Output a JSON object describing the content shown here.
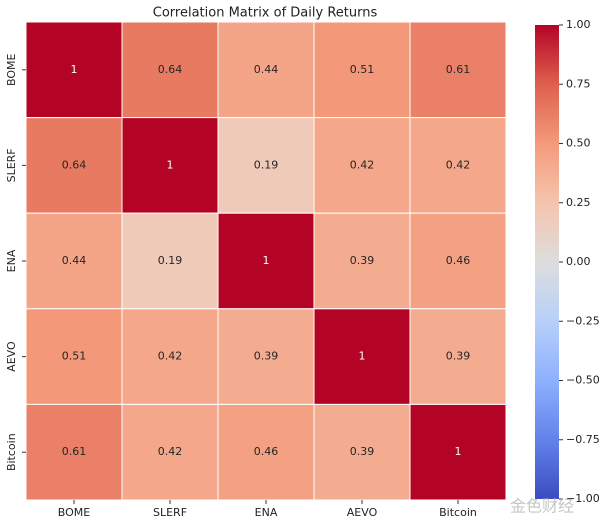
{
  "chart_data": {
    "type": "heatmap",
    "title": "Correlation Matrix of Daily Returns",
    "x_categories": [
      "BOME",
      "SLERF",
      "ENA",
      "AEVO",
      "Bitcoin"
    ],
    "y_categories": [
      "BOME",
      "SLERF",
      "ENA",
      "AEVO",
      "Bitcoin"
    ],
    "z": [
      [
        1,
        0.64,
        0.44,
        0.51,
        0.61
      ],
      [
        0.64,
        1,
        0.19,
        0.42,
        0.42
      ],
      [
        0.44,
        0.19,
        1,
        0.39,
        0.46
      ],
      [
        0.51,
        0.42,
        0.39,
        1,
        0.39
      ],
      [
        0.61,
        0.42,
        0.46,
        0.39,
        1
      ]
    ],
    "zlim": [
      -1,
      1
    ],
    "colormap": [
      "#3b4cc0",
      "#6282ea",
      "#8db0fe",
      "#b8d0f9",
      "#dddddd",
      "#f5c4ad",
      "#f49a7b",
      "#de604d",
      "#b40426"
    ],
    "zticks": [
      {
        "value": -1,
        "label": "−1.00"
      },
      {
        "value": -0.75,
        "label": "−0.75"
      },
      {
        "value": -0.5,
        "label": "−0.50"
      },
      {
        "value": -0.25,
        "label": "−0.25"
      },
      {
        "value": 0,
        "label": "0.00"
      },
      {
        "value": 0.25,
        "label": "0.25"
      },
      {
        "value": 0.5,
        "label": "0.50"
      },
      {
        "value": 0.75,
        "label": "0.75"
      },
      {
        "value": 1,
        "label": "1.00"
      }
    ],
    "watermark": "金色财经"
  }
}
